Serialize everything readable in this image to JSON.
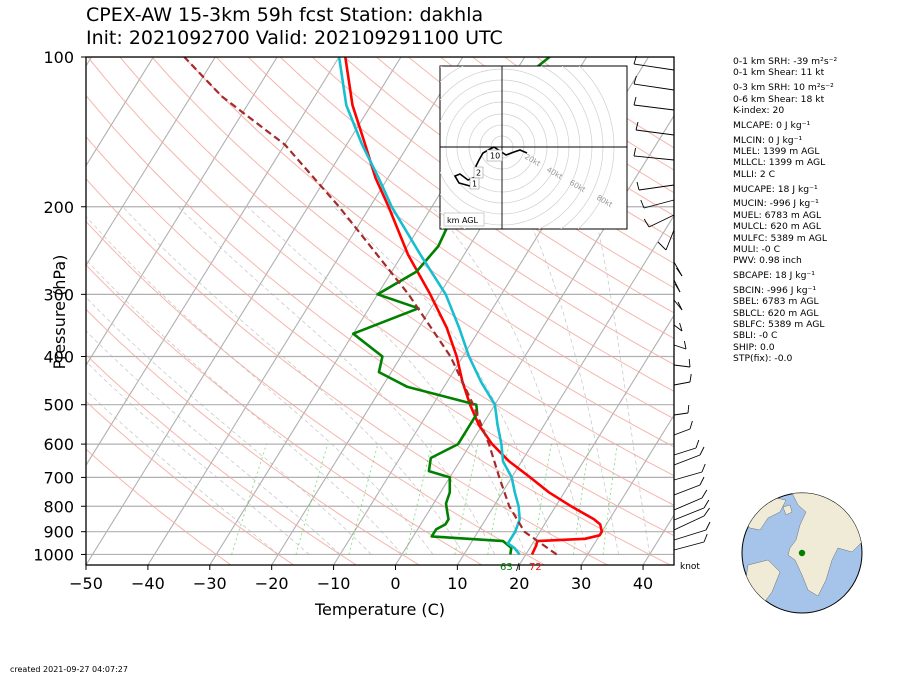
{
  "title": {
    "line1": "CPEX-AW 15-3km  59h fcst  Station: dakhla",
    "line2": "Init: 2021092700  Valid: 202109291100 UTC"
  },
  "chart_data": {
    "type": "skew-t",
    "xlabel": "Temperature (C)",
    "ylabel": "Pressure (hPa)",
    "x_ticks": [
      -50,
      -40,
      -30,
      -20,
      -10,
      0,
      10,
      20,
      30,
      40
    ],
    "y_ticks": [
      100,
      200,
      300,
      400,
      500,
      600,
      700,
      800,
      900,
      1000
    ],
    "xlim": [
      -50,
      45
    ],
    "ylim": [
      1050,
      100
    ],
    "y_scale": "log",
    "grid": true,
    "series": [
      {
        "role": "temperature",
        "color": "#ff0000",
        "points": [
          [
            1000,
            21
          ],
          [
            960,
            20.8
          ],
          [
            940,
            20.5
          ],
          [
            930,
            28
          ],
          [
            915,
            30
          ],
          [
            900,
            30
          ],
          [
            870,
            29
          ],
          [
            850,
            27.5
          ],
          [
            800,
            22.5
          ],
          [
            750,
            17.5
          ],
          [
            700,
            13
          ],
          [
            650,
            8
          ],
          [
            600,
            3.5
          ],
          [
            550,
            -0.5
          ],
          [
            500,
            -4
          ],
          [
            450,
            -7.5
          ],
          [
            400,
            -11
          ],
          [
            350,
            -15.5
          ],
          [
            300,
            -21.5
          ],
          [
            250,
            -29
          ],
          [
            200,
            -37
          ],
          [
            175,
            -42
          ],
          [
            150,
            -47
          ],
          [
            125,
            -53
          ],
          [
            100,
            -59
          ]
        ]
      },
      {
        "role": "dewpoint",
        "color": "#008000",
        "points": [
          [
            1000,
            17.5
          ],
          [
            970,
            17
          ],
          [
            940,
            15
          ],
          [
            920,
            3
          ],
          [
            890,
            3
          ],
          [
            870,
            4
          ],
          [
            850,
            4
          ],
          [
            820,
            3
          ],
          [
            790,
            2
          ],
          [
            750,
            1.5
          ],
          [
            700,
            0
          ],
          [
            680,
            -4
          ],
          [
            640,
            -5
          ],
          [
            600,
            -2
          ],
          [
            560,
            -2
          ],
          [
            520,
            -2
          ],
          [
            500,
            -3
          ],
          [
            460,
            -16
          ],
          [
            430,
            -22
          ],
          [
            400,
            -23
          ],
          [
            360,
            -30
          ],
          [
            320,
            -22
          ],
          [
            300,
            -30
          ],
          [
            270,
            -26
          ],
          [
            240,
            -25
          ],
          [
            200,
            -26
          ],
          [
            170,
            -30
          ],
          [
            140,
            -32
          ],
          [
            120,
            -30
          ],
          [
            100,
            -26
          ]
        ]
      },
      {
        "role": "virtual-dewpoint-profile",
        "color": "#17becf",
        "points": [
          [
            1000,
            19
          ],
          [
            970,
            17.5
          ],
          [
            950,
            16
          ],
          [
            900,
            16
          ],
          [
            850,
            15.5
          ],
          [
            800,
            14
          ],
          [
            750,
            12
          ],
          [
            700,
            10
          ],
          [
            650,
            7
          ],
          [
            600,
            5
          ],
          [
            550,
            2.5
          ],
          [
            500,
            0
          ],
          [
            450,
            -4.5
          ],
          [
            400,
            -9
          ],
          [
            350,
            -13.5
          ],
          [
            300,
            -19
          ],
          [
            250,
            -27
          ],
          [
            200,
            -36.5
          ],
          [
            175,
            -41.5
          ],
          [
            150,
            -47.5
          ],
          [
            125,
            -54
          ],
          [
            100,
            -60
          ]
        ]
      },
      {
        "role": "parcel-trace",
        "color": "#a52a2a",
        "dashed": true,
        "points": [
          [
            1000,
            25
          ],
          [
            900,
            17.5
          ],
          [
            800,
            12.5
          ],
          [
            700,
            8
          ],
          [
            600,
            3
          ],
          [
            500,
            -3.5
          ],
          [
            400,
            -12
          ],
          [
            300,
            -25
          ],
          [
            200,
            -45
          ],
          [
            150,
            -60
          ],
          [
            120,
            -75
          ],
          [
            100,
            -85
          ]
        ]
      }
    ],
    "surface_labels": {
      "dewpoint": "63",
      "temperature": "72"
    },
    "wind_units": "knot",
    "hodograph": {
      "ring_labels": [
        "20kt",
        "40kt",
        "60kt",
        "80kt"
      ],
      "height_labels": [
        "10",
        "2",
        "1"
      ],
      "legend": "km AGL"
    }
  },
  "indices": [
    "0-1 km SRH: -39 m²s⁻²",
    "0-1 km Shear: 11 kt",
    "0-3 km SRH: 10 m²s⁻²",
    "0-6 km Shear: 18 kt",
    "K-index: 20",
    "MLCAPE: 0 J kg⁻¹",
    "MLCIN: 0 J kg⁻¹",
    "MLEL: 1399 m AGL",
    "MLLCL: 1399 m AGL",
    "MLLI: 2 C",
    "MUCAPE: 18 J kg⁻¹",
    "MUCIN: -996 J kg⁻¹",
    "MUEL: 6783 m AGL",
    "MULCL: 620 m AGL",
    "MULFC: 5389 m AGL",
    "MULI: -0 C",
    "PWV: 0.98 inch",
    "SBCAPE: 18 J kg⁻¹",
    "SBCIN: -996 J kg⁻¹",
    "SBEL: 6783 m AGL",
    "SBLCL: 620 m AGL",
    "SBLFC: 5389 m AGL",
    "SBLI: -0 C",
    "SHIP: 0.0",
    "STP(fix): -0.0"
  ],
  "footer": {
    "created": "created 2021-09-27 04:07:27"
  },
  "globe": {
    "ocean_color": "#a6c4ea",
    "land_color": "#efebd6",
    "marker_color": "#008000"
  }
}
